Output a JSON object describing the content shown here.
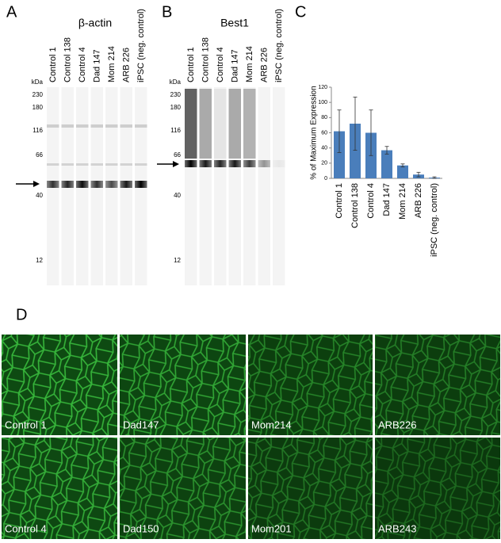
{
  "blots": {
    "lanes": [
      "Control 1",
      "Control 138",
      "Control 4",
      "Dad 147",
      "Mom 214",
      "ARB 226",
      "iPSC (neg. control)"
    ],
    "kda_label": "kDa",
    "kda_ticks": [
      230,
      180,
      116,
      66,
      40,
      12
    ],
    "panel_a": {
      "letter": "A",
      "title": "β-actin"
    },
    "panel_b": {
      "letter": "B",
      "title": "Best1"
    }
  },
  "chart_data": {
    "type": "bar",
    "letter": "C",
    "y_label": "% of Maximum Expression",
    "categories": [
      "Control 1",
      "Control 138",
      "Control 4",
      "Dad 147",
      "Mom 214",
      "ARB 226",
      "iPSC (neg. control)"
    ],
    "values": [
      62,
      72,
      60,
      37,
      17,
      5,
      1
    ],
    "errors": [
      28,
      35,
      30,
      5,
      2,
      3,
      1
    ],
    "color": "#4a7ebb",
    "ylim": [
      0,
      120
    ],
    "yticks": [
      0,
      20,
      40,
      60,
      80,
      100,
      120
    ]
  },
  "panel_d": {
    "letter": "D",
    "images": [
      "Control 1",
      "Dad147",
      "Mom214",
      "ARB226",
      "Control 4",
      "Dad150",
      "Mom201",
      "ARB243"
    ]
  }
}
